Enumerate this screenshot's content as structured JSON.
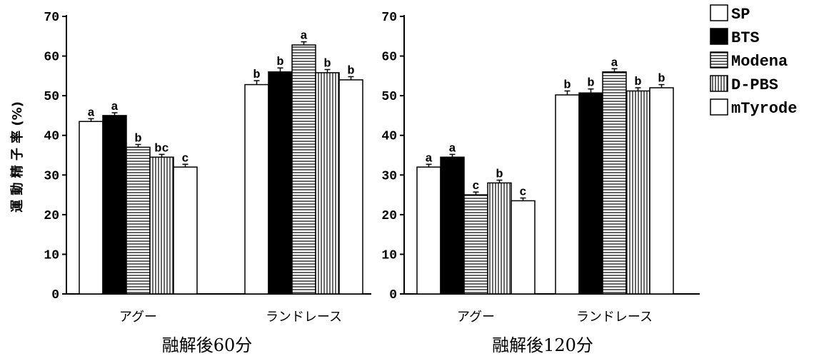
{
  "chart_data": [
    {
      "type": "bar",
      "subtitle": "融解後60分",
      "ylabel": "運 動 精 子 率 (%)",
      "ylim": [
        0,
        70
      ],
      "yticks": [
        0,
        10,
        20,
        30,
        40,
        50,
        60,
        70
      ],
      "categories": [
        "アグー",
        "ランドレース"
      ],
      "series": [
        {
          "name": "SP",
          "values": [
            43.5,
            52.8
          ],
          "err": [
            0.7,
            1.0
          ],
          "labels": [
            "a",
            "b"
          ]
        },
        {
          "name": "BTS",
          "values": [
            45.0,
            56.0
          ],
          "err": [
            0.7,
            1.0
          ],
          "labels": [
            "a",
            "b"
          ]
        },
        {
          "name": "Modena",
          "values": [
            37.0,
            62.8
          ],
          "err": [
            0.7,
            0.8
          ],
          "labels": [
            "b",
            "a"
          ]
        },
        {
          "name": "D-PBS",
          "values": [
            34.5,
            55.8
          ],
          "err": [
            0.7,
            0.8
          ],
          "labels": [
            "bc",
            "b"
          ]
        },
        {
          "name": "mTyrode",
          "values": [
            32.0,
            54.0
          ],
          "err": [
            0.7,
            0.8
          ],
          "labels": [
            "c",
            "b"
          ]
        }
      ]
    },
    {
      "type": "bar",
      "subtitle": "融解後120分",
      "ylim": [
        0,
        70
      ],
      "yticks": [
        0,
        10,
        20,
        30,
        40,
        50,
        60,
        70
      ],
      "categories": [
        "アグー",
        "ランドレース"
      ],
      "series": [
        {
          "name": "SP",
          "values": [
            32.0,
            50.2
          ],
          "err": [
            0.7,
            1.0
          ],
          "labels": [
            "a",
            "b"
          ]
        },
        {
          "name": "BTS",
          "values": [
            34.5,
            50.7
          ],
          "err": [
            0.7,
            1.0
          ],
          "labels": [
            "a",
            "b"
          ]
        },
        {
          "name": "Modena",
          "values": [
            25.0,
            56.0
          ],
          "err": [
            0.7,
            0.8
          ],
          "labels": [
            "c",
            "a"
          ]
        },
        {
          "name": "D-PBS",
          "values": [
            28.0,
            51.2
          ],
          "err": [
            0.7,
            0.8
          ],
          "labels": [
            "b",
            "b"
          ]
        },
        {
          "name": "mTyrode",
          "values": [
            23.5,
            52.0
          ],
          "err": [
            0.7,
            0.8
          ],
          "labels": [
            "c",
            "b"
          ]
        }
      ]
    }
  ],
  "legend": {
    "items": [
      {
        "label": "SP",
        "fill": "white"
      },
      {
        "label": "BTS",
        "fill": "black"
      },
      {
        "label": "Modena",
        "fill": "hlines"
      },
      {
        "label": "D-PBS",
        "fill": "vlines"
      },
      {
        "label": "mTyrode",
        "fill": "white"
      }
    ]
  }
}
